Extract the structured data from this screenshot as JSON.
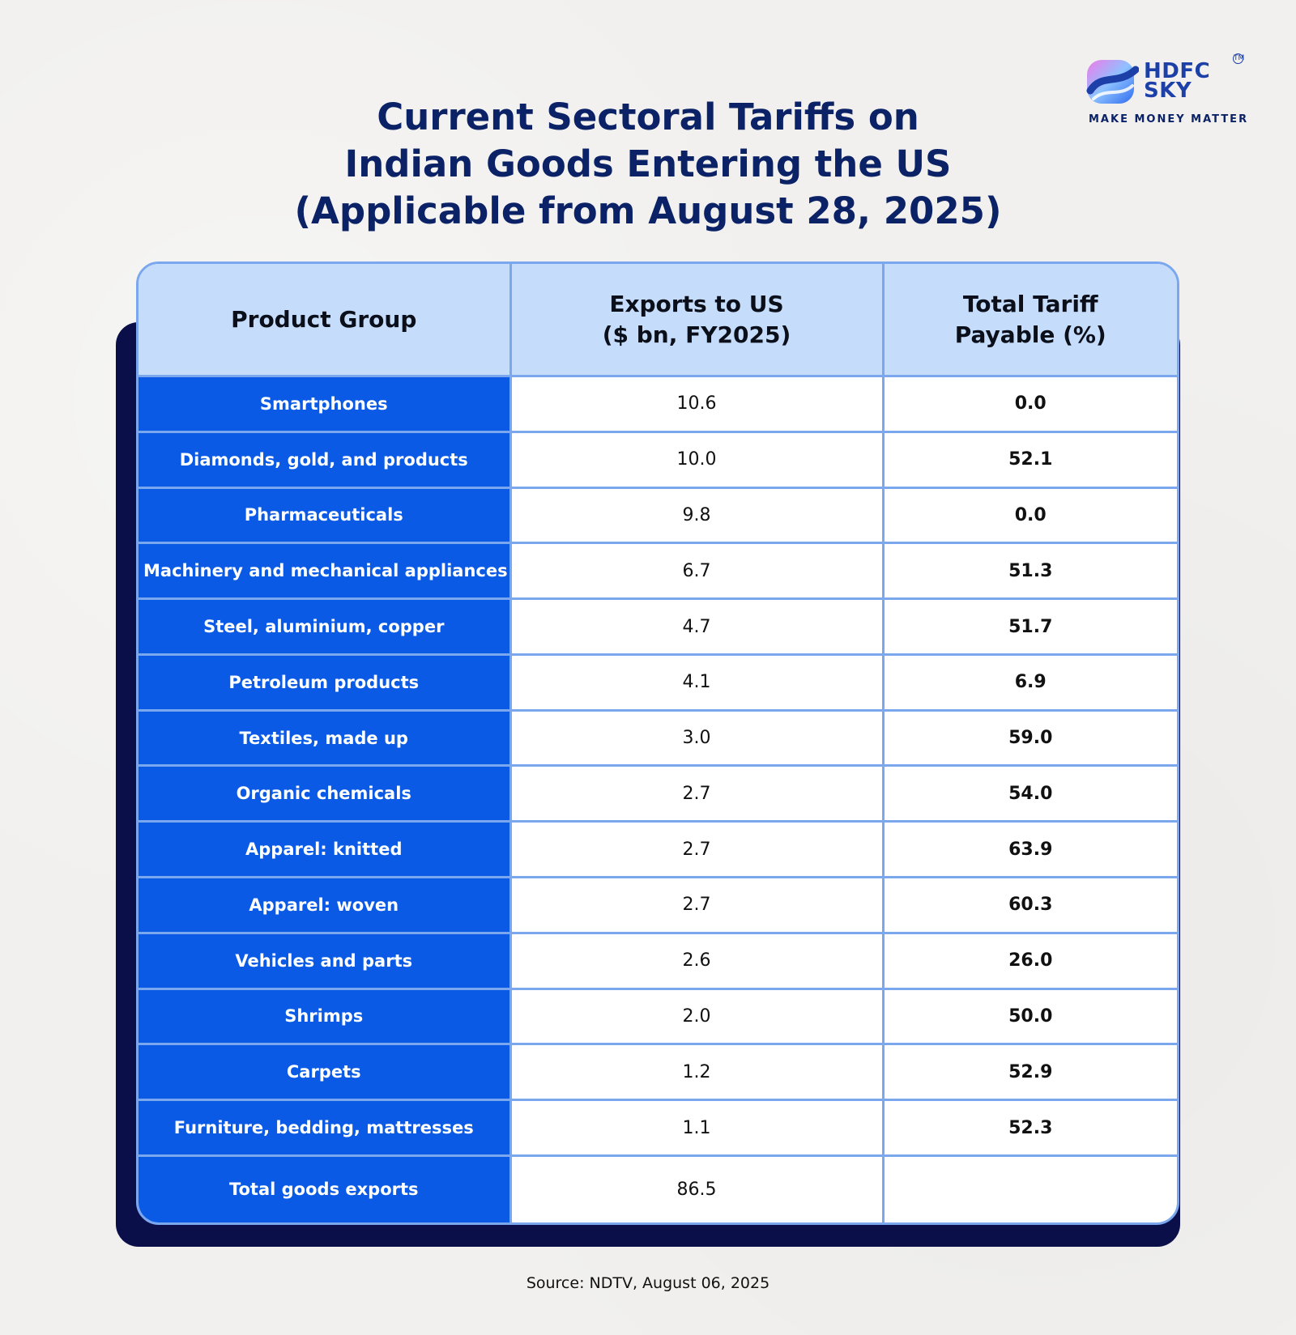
{
  "brand": {
    "name_line1": "HDFC",
    "name_line2": "SKY",
    "tagline": "MAKE MONEY MATTER",
    "trademark": "TM",
    "colors": {
      "logo_blue": "#1c3fa8",
      "logo_gradient_start": "#2f8cff",
      "logo_gradient_end": "#e46cf2"
    }
  },
  "title": {
    "line1": "Current Sectoral Tariffs on",
    "line2": "Indian Goods Entering the US",
    "line3": "(Applicable from August 28, 2025)"
  },
  "table": {
    "headers": {
      "product": "Product Group",
      "exports_line1": "Exports to US",
      "exports_line2": "($ bn, FY2025)",
      "tariff_line1": "Total Tariff",
      "tariff_line2": "Payable (%)"
    },
    "rows": [
      {
        "product": "Smartphones",
        "exports": "10.6",
        "tariff": "0.0"
      },
      {
        "product": "Diamonds, gold, and products",
        "exports": "10.0",
        "tariff": "52.1"
      },
      {
        "product": "Pharmaceuticals",
        "exports": "9.8",
        "tariff": "0.0"
      },
      {
        "product": "Machinery and mechanical appliances",
        "exports": "6.7",
        "tariff": "51.3"
      },
      {
        "product": "Steel, aluminium, copper",
        "exports": "4.7",
        "tariff": "51.7"
      },
      {
        "product": "Petroleum products",
        "exports": "4.1",
        "tariff": "6.9"
      },
      {
        "product": "Textiles, made up",
        "exports": "3.0",
        "tariff": "59.0"
      },
      {
        "product": "Organic chemicals",
        "exports": "2.7",
        "tariff": "54.0"
      },
      {
        "product": "Apparel: knitted",
        "exports": "2.7",
        "tariff": "63.9"
      },
      {
        "product": "Apparel: woven",
        "exports": "2.7",
        "tariff": "60.3"
      },
      {
        "product": "Vehicles and parts",
        "exports": "2.6",
        "tariff": "26.0"
      },
      {
        "product": "Shrimps",
        "exports": "2.0",
        "tariff": "50.0"
      },
      {
        "product": "Carpets",
        "exports": "1.2",
        "tariff": "52.9"
      },
      {
        "product": "Furniture, bedding, mattresses",
        "exports": "1.1",
        "tariff": "52.3"
      },
      {
        "product": "Total goods exports",
        "exports": "86.5",
        "tariff": ""
      }
    ],
    "colors": {
      "header_bg": "#c6dcfb",
      "product_bg": "#0a5ae6",
      "border": "#7aa7ee",
      "shadow": "#0a0f4a"
    }
  },
  "source": "Source: NDTV, August 06, 2025",
  "chart_data": {
    "type": "table",
    "title": "Current Sectoral Tariffs on Indian Goods Entering the US (Applicable from August 28, 2025)",
    "columns": [
      "Product Group",
      "Exports to US ($ bn, FY2025)",
      "Total Tariff Payable (%)"
    ],
    "rows": [
      [
        "Smartphones",
        10.6,
        0.0
      ],
      [
        "Diamonds, gold, and products",
        10.0,
        52.1
      ],
      [
        "Pharmaceuticals",
        9.8,
        0.0
      ],
      [
        "Machinery and mechanical appliances",
        6.7,
        51.3
      ],
      [
        "Steel, aluminium, copper",
        4.7,
        51.7
      ],
      [
        "Petroleum products",
        4.1,
        6.9
      ],
      [
        "Textiles, made up",
        3.0,
        59.0
      ],
      [
        "Organic chemicals",
        2.7,
        54.0
      ],
      [
        "Apparel: knitted",
        2.7,
        63.9
      ],
      [
        "Apparel: woven",
        2.7,
        60.3
      ],
      [
        "Vehicles and parts",
        2.6,
        26.0
      ],
      [
        "Shrimps",
        2.0,
        50.0
      ],
      [
        "Carpets",
        1.2,
        52.9
      ],
      [
        "Furniture, bedding, mattresses",
        1.1,
        52.3
      ],
      [
        "Total goods exports",
        86.5,
        null
      ]
    ],
    "source": "Source: NDTV, August 06, 2025"
  }
}
